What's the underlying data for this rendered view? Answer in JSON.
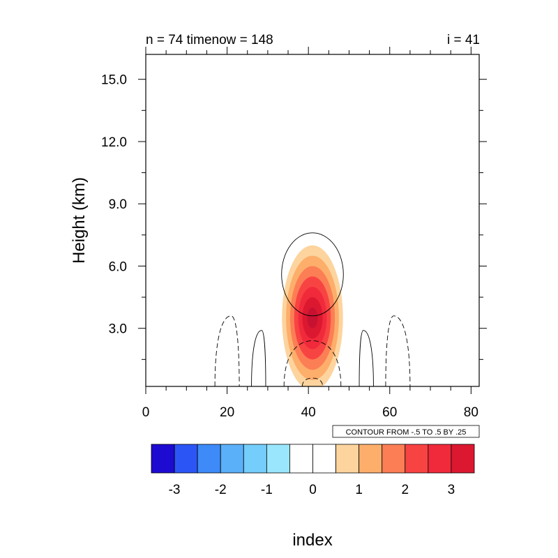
{
  "chart_data": {
    "type": "contour",
    "title_left": "n = 74 timenow = 148",
    "title_right": "i = 41",
    "xlabel": "index",
    "ylabel": "Height (km)",
    "xlim": [
      0,
      82
    ],
    "ylim": [
      0.2,
      16.2
    ],
    "x_ticks": [
      0,
      20,
      40,
      60,
      80
    ],
    "y_ticks": [
      3.0,
      6.0,
      9.0,
      12.0,
      15.0
    ],
    "x_tick_labels": [
      "0",
      "20",
      "40",
      "60",
      "80"
    ],
    "y_tick_labels": [
      "3.0",
      "6.0",
      "9.0",
      "12.0",
      "15.0"
    ],
    "contour_info": "CONTOUR FROM -.5 TO .5 BY .25",
    "fill_field": {
      "center_x": 41,
      "center_y": 3.5,
      "max_value": 3.5,
      "levels": [
        0.5,
        1,
        1.5,
        2,
        2.5,
        3,
        3.5
      ],
      "level_colors": [
        "#fdd49e",
        "#fdae6b",
        "#fc7e55",
        "#f84343",
        "#f02a3b",
        "#dc1831",
        "#c61230"
      ],
      "half_widths_x": [
        7.5,
        6.5,
        5.5,
        4.5,
        3.5,
        2.5,
        1.3
      ],
      "half_heights_y": [
        3.5,
        3.0,
        2.5,
        2.0,
        1.5,
        1.0,
        0.5
      ]
    },
    "line_contours": [
      {
        "style": "solid",
        "shape": "oval",
        "center_x": 41,
        "center_y": 5.6,
        "rx": 7.6,
        "ry": 2.0
      },
      {
        "style": "solid",
        "shape": "dome",
        "x_left": 26,
        "x_right": 29.5,
        "peak_x": 28.5,
        "peak_y": 2.9
      },
      {
        "style": "solid",
        "shape": "dome",
        "x_left": 52.5,
        "x_right": 56,
        "peak_x": 53.5,
        "peak_y": 2.9
      },
      {
        "style": "dashed",
        "shape": "dome",
        "x_left": 17,
        "x_right": 23,
        "peak_x": 21,
        "peak_y": 3.6
      },
      {
        "style": "dashed",
        "shape": "dome",
        "x_left": 59,
        "x_right": 65,
        "peak_x": 61,
        "peak_y": 3.6
      },
      {
        "style": "dashed",
        "shape": "dome",
        "x_left": 34,
        "x_right": 48,
        "peak_x": 41,
        "peak_y": 2.4
      },
      {
        "style": "dashed",
        "shape": "dome",
        "x_left": 38.5,
        "x_right": 43.5,
        "peak_x": 41,
        "peak_y": 0.6
      }
    ],
    "colorbar": {
      "colors": [
        "#1e0bd1",
        "#2c55f6",
        "#3d8af8",
        "#5ab0f9",
        "#74cdfb",
        "#99e6fd",
        "#ffffff",
        "#ffffff",
        "#fdd49e",
        "#fdae6b",
        "#fc7e55",
        "#f84343",
        "#f02a3b",
        "#dc1831"
      ],
      "tick_labels": [
        "-3",
        "-2",
        "-1",
        "0",
        "1",
        "2",
        "3"
      ]
    }
  }
}
